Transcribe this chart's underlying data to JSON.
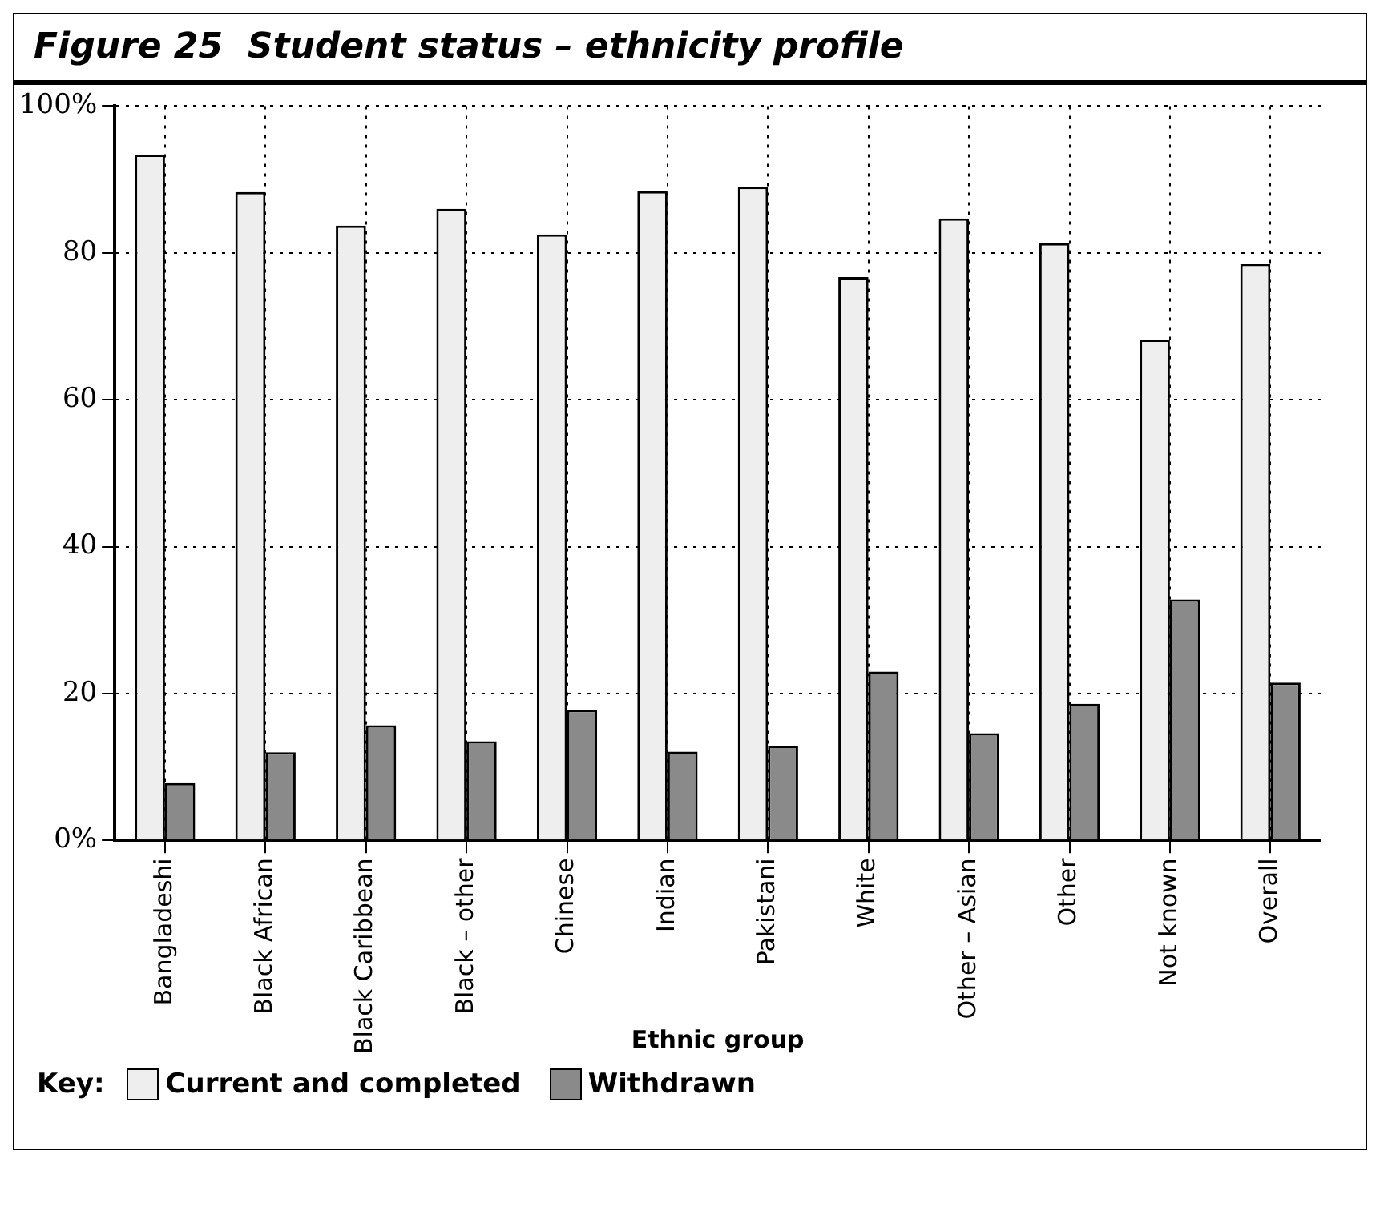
{
  "chart_data": {
    "type": "bar",
    "title": "Figure 25  Student status – ethnicity profile",
    "xlabel": "Ethnic group",
    "legend_title": "Key:",
    "categories": [
      "Bangladeshi",
      "Black African",
      "Black Caribbean",
      "Black – other",
      "Chinese",
      "Indian",
      "Pakistani",
      "White",
      "Other – Asian",
      "Other",
      "Not known",
      "Overall"
    ],
    "series": [
      {
        "name": "Current and completed",
        "color": "#eeeeee",
        "values": [
          93.4,
          88.3,
          83.7,
          86.0,
          82.5,
          88.4,
          89.0,
          76.7,
          84.7,
          81.3,
          68.2,
          78.5
        ]
      },
      {
        "name": "Withdrawn",
        "color": "#8a8a8a",
        "values": [
          7.8,
          12.0,
          15.7,
          13.5,
          17.8,
          12.1,
          12.9,
          23.0,
          14.6,
          18.6,
          32.8,
          21.5
        ]
      }
    ],
    "ylim": [
      0,
      100
    ],
    "yticks": [
      {
        "value": 0,
        "label": "0%"
      },
      20,
      40,
      60,
      80,
      {
        "value": 100,
        "label": "100%"
      }
    ],
    "grid": true,
    "legend": "bottom left"
  }
}
